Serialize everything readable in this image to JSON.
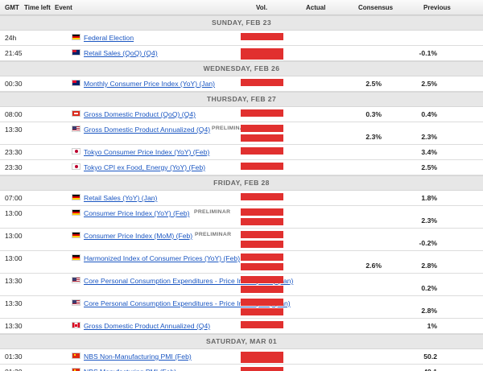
{
  "header": {
    "gmt": "GMT",
    "time_left": "Time left",
    "event": "Event",
    "vol": "Vol.",
    "actual": "Actual",
    "consensus": "Consensus",
    "previous": "Previous"
  },
  "days": [
    {
      "label": "SUNDAY, FEB 23",
      "events": [
        {
          "time": "24h",
          "flag": "de",
          "name": "Federal Election",
          "tag": "",
          "consensus": "",
          "previous": "",
          "h": 19,
          "vol_rows": 1
        },
        {
          "time": "21:45",
          "flag": "nz",
          "name": "Retail Sales (QoQ) (Q4)",
          "tag": "",
          "consensus": "",
          "previous": "-0.1%",
          "h": 19,
          "vol_rows": 2
        }
      ]
    },
    {
      "label": "WEDNESDAY, FEB 26",
      "events": [
        {
          "time": "00:30",
          "flag": "au",
          "name": "Monthly Consumer Price Index (YoY) (Jan)",
          "tag": "",
          "consensus": "2.5%",
          "previous": "2.5%",
          "h": 19,
          "vol_rows": 1
        }
      ]
    },
    {
      "label": "THURSDAY, FEB 27",
      "events": [
        {
          "time": "08:00",
          "flag": "ch",
          "name": "Gross Domestic Product (QoQ) (Q4)",
          "tag": "",
          "consensus": "0.3%",
          "previous": "0.4%",
          "h": 19,
          "vol_rows": 1
        },
        {
          "time": "13:30",
          "flag": "us",
          "name": "Gross Domestic Product Annualized (Q4)",
          "tag": "PRELIMINAR",
          "consensus": "2.3%",
          "previous": "2.3%",
          "h": 28,
          "vol_rows": 2
        },
        {
          "time": "23:30",
          "flag": "jp",
          "name": "Tokyo Consumer Price Index (YoY) (Feb)",
          "tag": "",
          "consensus": "",
          "previous": "3.4%",
          "h": 19,
          "vol_rows": 1
        },
        {
          "time": "23:30",
          "flag": "jp",
          "name": "Tokyo CPI ex Food, Energy (YoY) (Feb)",
          "tag": "",
          "consensus": "",
          "previous": "2.5%",
          "h": 19,
          "vol_rows": 1
        }
      ]
    },
    {
      "label": "FRIDAY, FEB 28",
      "events": [
        {
          "time": "07:00",
          "flag": "de",
          "name": "Retail Sales (YoY) (Jan)",
          "tag": "",
          "consensus": "",
          "previous": "1.8%",
          "h": 19,
          "vol_rows": 1
        },
        {
          "time": "13:00",
          "flag": "de",
          "name": "Consumer Price Index (YoY) (Feb)",
          "tag": "PRELIMINAR",
          "consensus": "",
          "previous": "2.3%",
          "h": 28,
          "vol_rows": 2
        },
        {
          "time": "13:00",
          "flag": "de",
          "name": "Consumer Price Index (MoM) (Feb)",
          "tag": "PRELIMINAR",
          "consensus": "",
          "previous": "-0.2%",
          "h": 28,
          "vol_rows": 2
        },
        {
          "time": "13:00",
          "flag": "de",
          "name": "Harmonized Index of Consumer Prices (YoY) (Feb)",
          "tag": "PRELIMINAR",
          "consensus": "2.6%",
          "previous": "2.8%",
          "h": 28,
          "vol_rows": 2
        },
        {
          "time": "13:30",
          "flag": "us",
          "name": "Core Personal Consumption Expenditures - Price Index (MoM) (Jan)",
          "tag": "",
          "consensus": "",
          "previous": "0.2%",
          "h": 28,
          "vol_rows": 2
        },
        {
          "time": "13:30",
          "flag": "us",
          "name": "Core Personal Consumption Expenditures - Price Index (YoY) (Jan)",
          "tag": "",
          "consensus": "",
          "previous": "2.8%",
          "h": 28,
          "vol_rows": 2
        },
        {
          "time": "13:30",
          "flag": "ca",
          "name": "Gross Domestic Product Annualized (Q4)",
          "tag": "",
          "consensus": "",
          "previous": "1%",
          "h": 19,
          "vol_rows": 1
        }
      ]
    },
    {
      "label": "SATURDAY, MAR 01",
      "events": [
        {
          "time": "01:30",
          "flag": "cn",
          "name": "NBS Non-Manufacturing PMI (Feb)",
          "tag": "",
          "consensus": "",
          "previous": "50.2",
          "h": 19,
          "vol_rows": 2
        },
        {
          "time": "01:30",
          "flag": "cn",
          "name": "NBS Manufacturing PMI (Feb)",
          "tag": "",
          "consensus": "",
          "previous": "49.1",
          "h": 19,
          "vol_rows": 2
        }
      ]
    }
  ],
  "flag_colors": {
    "de": [
      "#000000",
      "#dd0000",
      "#ffce00"
    ],
    "us": [
      "#b22234",
      "#ffffff",
      "#3c3b6e"
    ],
    "jp": [
      "#ffffff",
      "#bc002d"
    ],
    "ch": [
      "#da291c",
      "#ffffff"
    ],
    "nz": [
      "#012169",
      "#cc142b"
    ],
    "au": [
      "#012169",
      "#e4002b"
    ],
    "ca": [
      "#d80621",
      "#ffffff"
    ],
    "cn": [
      "#de2910",
      "#ffde00"
    ]
  },
  "colors": {
    "volatility_high": "#e1302f",
    "event_link": "#1a56c2"
  }
}
